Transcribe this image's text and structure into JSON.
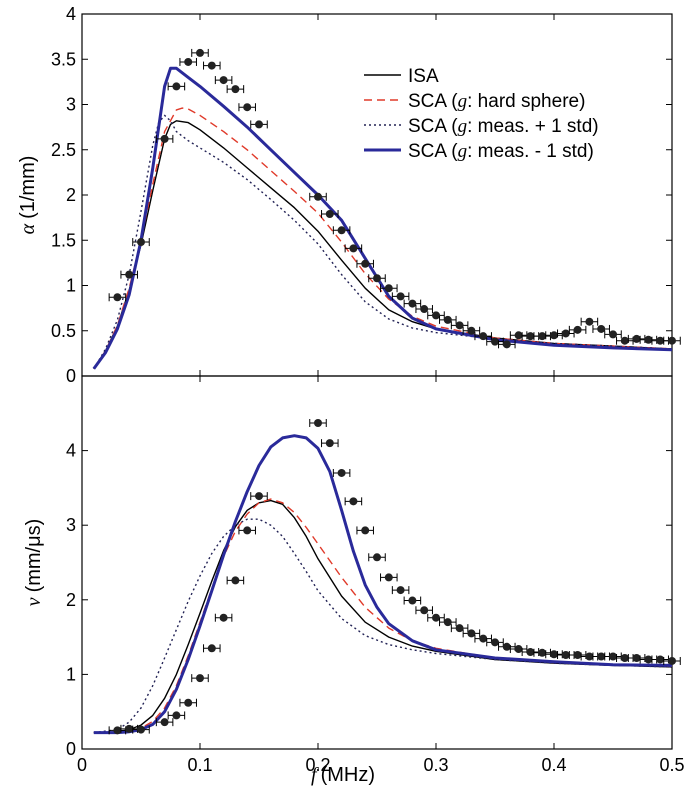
{
  "chart_data": [
    {
      "type": "line",
      "title": "",
      "xlabel": "",
      "ylabel_symbol": "α",
      "ylabel_unit": "(1/mm)",
      "xlim": [
        0,
        0.5
      ],
      "ylim": [
        0,
        4
      ],
      "xticks": [
        0,
        0.1,
        0.2,
        0.3,
        0.4,
        0.5
      ],
      "yticks": [
        0,
        0.5,
        1,
        1.5,
        2,
        2.5,
        3,
        3.5,
        4
      ],
      "xtick_labels": [],
      "ytick_labels": [
        "0",
        "0.5",
        "1",
        "1.5",
        "2",
        "2.5",
        "3",
        "3.5",
        "4"
      ],
      "grid": false,
      "legend_position": "top-right",
      "legend": [
        {
          "series": "isa",
          "pre": "ISA",
          "sym": "",
          "post": ""
        },
        {
          "series": "sca_hs",
          "pre": "SCA (",
          "sym": "g",
          "post": ": hard sphere)"
        },
        {
          "series": "sca_plus",
          "pre": "SCA (",
          "sym": "g",
          "post": ": meas. + 1 std)"
        },
        {
          "series": "sca_minus",
          "pre": "SCA (",
          "sym": "g",
          "post": ": meas. - 1 std)"
        }
      ],
      "series": [
        {
          "id": "isa",
          "color": "#000000",
          "dash": "",
          "width": 1.4,
          "x": [
            0.01,
            0.02,
            0.03,
            0.04,
            0.05,
            0.06,
            0.07,
            0.075,
            0.08,
            0.09,
            0.1,
            0.12,
            0.14,
            0.16,
            0.18,
            0.2,
            0.22,
            0.24,
            0.26,
            0.28,
            0.3,
            0.35,
            0.4,
            0.45,
            0.5
          ],
          "y": [
            0.08,
            0.28,
            0.55,
            0.95,
            1.45,
            2.05,
            2.62,
            2.78,
            2.82,
            2.8,
            2.72,
            2.52,
            2.3,
            2.08,
            1.86,
            1.6,
            1.28,
            0.97,
            0.73,
            0.6,
            0.52,
            0.42,
            0.36,
            0.33,
            0.3
          ]
        },
        {
          "id": "sca_hs",
          "color": "#e03a2a",
          "dash": "8,5",
          "width": 1.4,
          "x": [
            0.01,
            0.02,
            0.03,
            0.04,
            0.05,
            0.06,
            0.07,
            0.08,
            0.085,
            0.09,
            0.1,
            0.12,
            0.14,
            0.16,
            0.18,
            0.2,
            0.22,
            0.24,
            0.26,
            0.28,
            0.3,
            0.35,
            0.4,
            0.45,
            0.5
          ],
          "y": [
            0.08,
            0.28,
            0.56,
            0.97,
            1.5,
            2.12,
            2.7,
            2.94,
            2.96,
            2.95,
            2.88,
            2.7,
            2.5,
            2.27,
            2.04,
            1.8,
            1.48,
            1.13,
            0.85,
            0.66,
            0.55,
            0.42,
            0.36,
            0.33,
            0.3
          ]
        },
        {
          "id": "sca_plus",
          "color": "#222255",
          "dash": "2,3",
          "width": 1.4,
          "x": [
            0.01,
            0.02,
            0.03,
            0.04,
            0.05,
            0.06,
            0.065,
            0.07,
            0.075,
            0.08,
            0.09,
            0.1,
            0.12,
            0.14,
            0.16,
            0.18,
            0.2,
            0.22,
            0.24,
            0.26,
            0.28,
            0.3,
            0.35,
            0.4,
            0.45,
            0.5
          ],
          "y": [
            0.08,
            0.3,
            0.62,
            1.12,
            1.82,
            2.55,
            2.8,
            2.88,
            2.82,
            2.7,
            2.6,
            2.52,
            2.36,
            2.17,
            1.95,
            1.72,
            1.46,
            1.12,
            0.82,
            0.63,
            0.53,
            0.48,
            0.41,
            0.36,
            0.33,
            0.3
          ]
        },
        {
          "id": "sca_minus",
          "color": "#2a2a9a",
          "dash": "",
          "width": 3,
          "x": [
            0.01,
            0.02,
            0.03,
            0.04,
            0.05,
            0.06,
            0.07,
            0.075,
            0.08,
            0.09,
            0.1,
            0.12,
            0.14,
            0.16,
            0.18,
            0.2,
            0.22,
            0.24,
            0.26,
            0.28,
            0.3,
            0.35,
            0.4,
            0.45,
            0.5
          ],
          "y": [
            0.08,
            0.26,
            0.52,
            0.9,
            1.5,
            2.3,
            3.2,
            3.4,
            3.4,
            3.3,
            3.2,
            2.98,
            2.75,
            2.5,
            2.25,
            2.0,
            1.72,
            1.3,
            0.88,
            0.64,
            0.52,
            0.4,
            0.34,
            0.31,
            0.29
          ]
        }
      ],
      "measured": {
        "x": [
          0.03,
          0.04,
          0.05,
          0.07,
          0.08,
          0.09,
          0.1,
          0.11,
          0.12,
          0.13,
          0.14,
          0.15,
          0.2,
          0.21,
          0.22,
          0.23,
          0.24,
          0.25,
          0.26,
          0.27,
          0.28,
          0.29,
          0.3,
          0.31,
          0.32,
          0.33,
          0.34,
          0.35,
          0.36,
          0.37,
          0.38,
          0.39,
          0.4,
          0.41,
          0.42,
          0.43,
          0.44,
          0.45,
          0.46,
          0.47,
          0.48,
          0.49,
          0.5
        ],
        "y": [
          0.87,
          1.12,
          1.48,
          2.62,
          3.2,
          3.47,
          3.57,
          3.43,
          3.27,
          3.17,
          2.97,
          2.78,
          1.98,
          1.79,
          1.61,
          1.41,
          1.24,
          1.08,
          0.97,
          0.88,
          0.8,
          0.74,
          0.67,
          0.62,
          0.56,
          0.5,
          0.44,
          0.38,
          0.35,
          0.45,
          0.44,
          0.44,
          0.45,
          0.47,
          0.51,
          0.6,
          0.52,
          0.46,
          0.39,
          0.41,
          0.4,
          0.39,
          0.39
        ],
        "err_x": 0.007
      }
    },
    {
      "type": "line",
      "title": "",
      "xlabel_symbol": "f",
      "xlabel_unit": "(MHz)",
      "ylabel_symbol": "v",
      "ylabel_unit": "(mm/μs)",
      "xlim": [
        0,
        0.5
      ],
      "ylim": [
        0,
        5
      ],
      "xticks": [
        0,
        0.1,
        0.2,
        0.3,
        0.4,
        0.5
      ],
      "yticks": [
        0,
        1,
        2,
        3,
        4
      ],
      "xtick_labels": [
        "0",
        "0.1",
        "0.2",
        "0.3",
        "0.4",
        "0.5"
      ],
      "ytick_labels": [
        "0",
        "1",
        "2",
        "3",
        "4"
      ],
      "grid": false,
      "series": [
        {
          "id": "isa",
          "color": "#000000",
          "dash": "",
          "width": 1.4,
          "x": [
            0.01,
            0.03,
            0.04,
            0.05,
            0.06,
            0.07,
            0.08,
            0.09,
            0.1,
            0.11,
            0.12,
            0.13,
            0.14,
            0.15,
            0.16,
            0.17,
            0.18,
            0.19,
            0.2,
            0.22,
            0.24,
            0.26,
            0.28,
            0.3,
            0.35,
            0.4,
            0.45,
            0.5
          ],
          "y": [
            0.22,
            0.23,
            0.26,
            0.32,
            0.45,
            0.68,
            1.0,
            1.4,
            1.82,
            2.25,
            2.66,
            2.98,
            3.2,
            3.3,
            3.33,
            3.28,
            3.1,
            2.85,
            2.55,
            2.05,
            1.7,
            1.5,
            1.38,
            1.31,
            1.2,
            1.15,
            1.12,
            1.1
          ]
        },
        {
          "id": "sca_hs",
          "color": "#e03a2a",
          "dash": "8,5",
          "width": 1.4,
          "x": [
            0.01,
            0.03,
            0.04,
            0.05,
            0.06,
            0.07,
            0.08,
            0.09,
            0.1,
            0.11,
            0.12,
            0.13,
            0.14,
            0.15,
            0.16,
            0.17,
            0.18,
            0.19,
            0.2,
            0.22,
            0.24,
            0.26,
            0.28,
            0.3,
            0.35,
            0.4,
            0.45,
            0.5
          ],
          "y": [
            0.22,
            0.22,
            0.24,
            0.28,
            0.37,
            0.55,
            0.85,
            1.25,
            1.7,
            2.15,
            2.58,
            2.92,
            3.15,
            3.3,
            3.35,
            3.3,
            3.17,
            2.97,
            2.75,
            2.3,
            1.9,
            1.62,
            1.45,
            1.35,
            1.22,
            1.16,
            1.13,
            1.11
          ]
        },
        {
          "id": "sca_plus",
          "color": "#222255",
          "dash": "2,3",
          "width": 1.4,
          "x": [
            0.01,
            0.03,
            0.04,
            0.05,
            0.06,
            0.07,
            0.08,
            0.09,
            0.1,
            0.11,
            0.12,
            0.13,
            0.14,
            0.15,
            0.16,
            0.17,
            0.18,
            0.19,
            0.2,
            0.22,
            0.24,
            0.26,
            0.28,
            0.3,
            0.35,
            0.4,
            0.45,
            0.5
          ],
          "y": [
            0.22,
            0.26,
            0.36,
            0.55,
            0.85,
            1.22,
            1.6,
            1.98,
            2.32,
            2.62,
            2.85,
            3.0,
            3.08,
            3.08,
            3.0,
            2.85,
            2.62,
            2.38,
            2.12,
            1.75,
            1.52,
            1.4,
            1.33,
            1.28,
            1.2,
            1.15,
            1.12,
            1.1
          ]
        },
        {
          "id": "sca_minus",
          "color": "#2a2a9a",
          "dash": "",
          "width": 3,
          "x": [
            0.01,
            0.03,
            0.04,
            0.05,
            0.06,
            0.07,
            0.08,
            0.09,
            0.1,
            0.11,
            0.12,
            0.13,
            0.14,
            0.15,
            0.16,
            0.17,
            0.18,
            0.19,
            0.2,
            0.21,
            0.22,
            0.23,
            0.24,
            0.25,
            0.26,
            0.28,
            0.3,
            0.35,
            0.4,
            0.45,
            0.5
          ],
          "y": [
            0.22,
            0.22,
            0.23,
            0.26,
            0.33,
            0.5,
            0.8,
            1.2,
            1.65,
            2.12,
            2.6,
            3.05,
            3.45,
            3.8,
            4.05,
            4.17,
            4.2,
            4.17,
            4.03,
            3.72,
            3.2,
            2.65,
            2.2,
            1.9,
            1.68,
            1.45,
            1.33,
            1.22,
            1.17,
            1.13,
            1.12
          ]
        }
      ],
      "measured": {
        "x": [
          0.03,
          0.04,
          0.05,
          0.07,
          0.08,
          0.09,
          0.1,
          0.11,
          0.12,
          0.13,
          0.14,
          0.15,
          0.2,
          0.21,
          0.22,
          0.23,
          0.24,
          0.25,
          0.26,
          0.27,
          0.28,
          0.29,
          0.3,
          0.31,
          0.32,
          0.33,
          0.34,
          0.35,
          0.36,
          0.37,
          0.38,
          0.39,
          0.4,
          0.41,
          0.42,
          0.43,
          0.44,
          0.45,
          0.46,
          0.47,
          0.48,
          0.49,
          0.5
        ],
        "y": [
          0.25,
          0.27,
          0.26,
          0.36,
          0.45,
          0.62,
          0.95,
          1.35,
          1.76,
          2.26,
          2.93,
          3.39,
          4.37,
          4.1,
          3.7,
          3.32,
          2.93,
          2.57,
          2.3,
          2.13,
          1.99,
          1.86,
          1.76,
          1.7,
          1.62,
          1.55,
          1.48,
          1.43,
          1.37,
          1.34,
          1.3,
          1.29,
          1.27,
          1.26,
          1.26,
          1.24,
          1.24,
          1.24,
          1.22,
          1.22,
          1.2,
          1.2,
          1.18
        ],
        "err_x": 0.007
      }
    }
  ]
}
